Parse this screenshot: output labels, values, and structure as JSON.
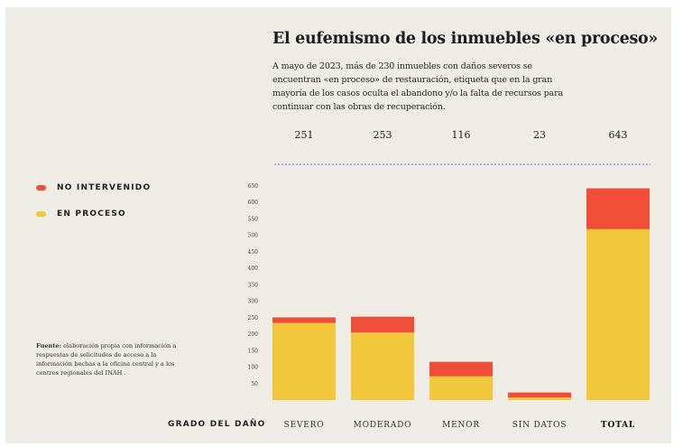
{
  "title": "El eufemismo de los inmuebles «en proceso»",
  "subtitle": "A mayo de 2023, más de 230 inmuebles con daños severos se encuentran «en proceso» de restauración, etiqueta que en la gran mayoría de los casos oculta el abandono y/o la falta de recursos para continuar con las obras de recuperación.",
  "legend": [
    {
      "label": "NO INTERVENIDO",
      "color": "#f04e37"
    },
    {
      "label": "EN PROCESO",
      "color": "#f1c73c"
    }
  ],
  "source": {
    "bold": "Fuente:",
    "text": " elaboración propia con información a respuestas de solicitudes de acceso a la información hechas a la oficina central y a los centros regionales del INAH ."
  },
  "axis_title": "GRADO DEL DAÑO",
  "colors": {
    "no_intervenido": "#f04e37",
    "en_proceso": "#f1c73c",
    "panel": "#efebe5",
    "dashed_line": "#6b74ff"
  },
  "chart_data": {
    "type": "bar",
    "stacked": true,
    "categories": [
      "SEVERO",
      "MODERADO",
      "MENOR",
      "SIN DATOS",
      "TOTAL"
    ],
    "totals": [
      "251",
      "253",
      "116",
      "23",
      "643"
    ],
    "series": [
      {
        "name": "EN PROCESO",
        "values": [
          234,
          205,
          72,
          8,
          519
        ]
      },
      {
        "name": "NO INTERVENIDO",
        "values": [
          17,
          48,
          44,
          15,
          124
        ]
      }
    ],
    "yticks": [
      "50",
      "100",
      "150",
      "200",
      "250",
      "300",
      "350",
      "400",
      "450",
      "500",
      "550",
      "600",
      "650"
    ],
    "ylim": [
      0,
      650
    ],
    "xlabel": "GRADO DEL DAÑO",
    "bold_category": "TOTAL"
  }
}
